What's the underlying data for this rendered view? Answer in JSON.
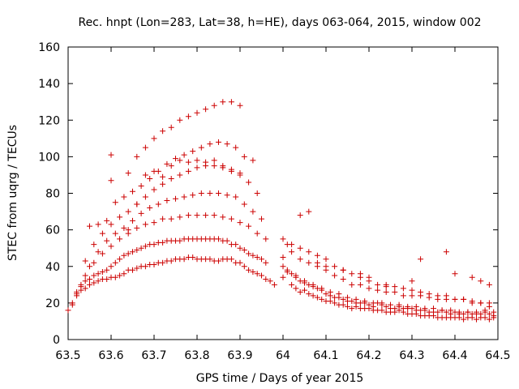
{
  "chart_data": {
    "type": "scatter",
    "title": "Rec. hnpt (Lon=283, Lat=38, h=HE), days 063-064, 2015, window 002",
    "xlabel": "GPS time / Days of year 2015",
    "ylabel": "STEC from uqrg / TECUs",
    "xlim": [
      63.5,
      64.5
    ],
    "ylim": [
      0,
      160
    ],
    "xticks": [
      "63.5",
      "63.6",
      "63.7",
      "63.8",
      "63.9",
      "64",
      "64.1",
      "64.2",
      "64.3",
      "64.4",
      "64.5"
    ],
    "yticks": [
      "0",
      "20",
      "40",
      "60",
      "80",
      "100",
      "120",
      "140",
      "160"
    ],
    "marker": "+",
    "color": "#cc0000",
    "series": [
      {
        "name": "STEC",
        "x": [
          63.5,
          63.51,
          63.52,
          63.53,
          63.54,
          63.55,
          63.56,
          63.57,
          63.58,
          63.59,
          63.6,
          63.61,
          63.62,
          63.63,
          63.64,
          63.65,
          63.66,
          63.67,
          63.68,
          63.69,
          63.7,
          63.71,
          63.72,
          63.73,
          63.74,
          63.75,
          63.76,
          63.77,
          63.78,
          63.79,
          63.8,
          63.81,
          63.82,
          63.83,
          63.84,
          63.85,
          63.86,
          63.87,
          63.88,
          63.89,
          63.9,
          63.91,
          63.92,
          63.93,
          63.94,
          63.95,
          63.96,
          63.97,
          63.98,
          63.51,
          63.52,
          63.53,
          63.54,
          63.55,
          63.56,
          63.57,
          63.58,
          63.59,
          63.6,
          63.61,
          63.62,
          63.63,
          63.64,
          63.65,
          63.66,
          63.67,
          63.68,
          63.69,
          63.7,
          63.71,
          63.72,
          63.73,
          63.74,
          63.75,
          63.76,
          63.77,
          63.78,
          63.79,
          63.8,
          63.81,
          63.82,
          63.83,
          63.84,
          63.85,
          63.86,
          63.87,
          63.88,
          63.89,
          63.9,
          63.91,
          63.92,
          63.93,
          63.94,
          63.95,
          63.96,
          63.52,
          63.54,
          63.56,
          63.58,
          63.6,
          63.62,
          63.64,
          63.66,
          63.68,
          63.7,
          63.72,
          63.74,
          63.76,
          63.78,
          63.8,
          63.82,
          63.84,
          63.86,
          63.88,
          63.9,
          63.92,
          63.94,
          63.96,
          63.53,
          63.55,
          63.57,
          63.59,
          63.61,
          63.63,
          63.65,
          63.67,
          63.69,
          63.71,
          63.73,
          63.75,
          63.77,
          63.79,
          63.81,
          63.83,
          63.85,
          63.87,
          63.89,
          63.91,
          63.93,
          63.95,
          63.54,
          63.56,
          63.58,
          63.6,
          63.62,
          63.64,
          63.66,
          63.68,
          63.7,
          63.72,
          63.74,
          63.76,
          63.78,
          63.8,
          63.82,
          63.84,
          63.86,
          63.88,
          63.9,
          63.92,
          63.94,
          63.55,
          63.57,
          63.59,
          63.61,
          63.63,
          63.65,
          63.67,
          63.69,
          63.71,
          63.73,
          63.75,
          63.77,
          63.79,
          63.81,
          63.83,
          63.85,
          63.87,
          63.89,
          63.91,
          63.93,
          63.6,
          63.64,
          63.66,
          63.68,
          63.7,
          63.72,
          63.74,
          63.76,
          63.78,
          63.8,
          63.82,
          63.84,
          63.86,
          63.88,
          63.9,
          63.6,
          63.64,
          63.66,
          63.68,
          63.7,
          63.72,
          63.74,
          63.76,
          63.78,
          63.8,
          63.82,
          63.84,
          63.86,
          63.88,
          63.9,
          64.0,
          64.01,
          64.02,
          64.03,
          64.04,
          64.05,
          64.06,
          64.07,
          64.08,
          64.09,
          64.1,
          64.11,
          64.12,
          64.13,
          64.14,
          64.15,
          64.16,
          64.17,
          64.18,
          64.19,
          64.2,
          64.21,
          64.22,
          64.23,
          64.24,
          64.25,
          64.26,
          64.27,
          64.28,
          64.29,
          64.3,
          64.31,
          64.32,
          64.33,
          64.34,
          64.35,
          64.36,
          64.37,
          64.38,
          64.39,
          64.4,
          64.41,
          64.42,
          64.43,
          64.44,
          64.45,
          64.46,
          64.47,
          64.48,
          64.49,
          64.0,
          64.01,
          64.02,
          64.03,
          64.04,
          64.05,
          64.06,
          64.07,
          64.08,
          64.09,
          64.1,
          64.11,
          64.12,
          64.13,
          64.14,
          64.15,
          64.16,
          64.17,
          64.18,
          64.19,
          64.2,
          64.21,
          64.22,
          64.23,
          64.24,
          64.25,
          64.26,
          64.27,
          64.28,
          64.29,
          64.3,
          64.31,
          64.32,
          64.33,
          64.34,
          64.35,
          64.36,
          64.37,
          64.38,
          64.39,
          64.4,
          64.41,
          64.42,
          64.43,
          64.44,
          64.45,
          64.46,
          64.47,
          64.48,
          64.49,
          64.0,
          64.02,
          64.04,
          64.06,
          64.08,
          64.1,
          64.12,
          64.14,
          64.16,
          64.18,
          64.2,
          64.22,
          64.24,
          64.26,
          64.28,
          64.3,
          64.32,
          64.34,
          64.36,
          64.38,
          64.4,
          64.42,
          64.44,
          64.46,
          64.48,
          64.0,
          64.02,
          64.04,
          64.06,
          64.08,
          64.1,
          64.12,
          64.14,
          64.16,
          64.18,
          64.2,
          64.22,
          64.24,
          64.26,
          64.28,
          64.3,
          64.32,
          64.34,
          64.36,
          64.38,
          64.4,
          64.42,
          64.44,
          64.46,
          64.48,
          64.01,
          64.03,
          64.05,
          64.07,
          64.09,
          64.11,
          64.13,
          64.15,
          64.17,
          64.19,
          64.21,
          64.23,
          64.25,
          64.27,
          64.29,
          64.31,
          64.33,
          64.35,
          64.37,
          64.39,
          64.41,
          64.43,
          64.45,
          64.47,
          64.49,
          64.04,
          64.06,
          64.08,
          64.1,
          64.14,
          64.18,
          64.2,
          64.24,
          64.3,
          64.32,
          64.38,
          64.4,
          64.44,
          64.46,
          64.48
        ],
        "y": [
          16,
          20,
          24,
          27,
          28,
          30,
          31,
          32,
          33,
          33,
          34,
          34,
          35,
          36,
          38,
          38,
          39,
          40,
          40,
          41,
          41,
          42,
          42,
          43,
          43,
          44,
          44,
          44,
          45,
          45,
          44,
          44,
          44,
          44,
          43,
          43,
          44,
          44,
          44,
          42,
          42,
          40,
          38,
          37,
          36,
          35,
          33,
          32,
          30,
          19,
          25,
          29,
          32,
          33,
          35,
          36,
          37,
          38,
          40,
          42,
          44,
          46,
          47,
          48,
          49,
          50,
          51,
          52,
          52,
          53,
          53,
          54,
          54,
          54,
          54,
          55,
          55,
          55,
          55,
          55,
          55,
          55,
          55,
          55,
          54,
          54,
          52,
          52,
          50,
          49,
          47,
          46,
          45,
          44,
          42,
          26,
          35,
          42,
          47,
          51,
          55,
          58,
          61,
          63,
          64,
          66,
          66,
          67,
          68,
          68,
          68,
          68,
          67,
          66,
          64,
          62,
          58,
          55,
          30,
          40,
          48,
          54,
          58,
          61,
          65,
          69,
          72,
          74,
          76,
          77,
          78,
          79,
          80,
          80,
          80,
          79,
          78,
          74,
          70,
          66,
          43,
          52,
          58,
          63,
          67,
          70,
          74,
          78,
          82,
          85,
          88,
          90,
          92,
          94,
          95,
          95,
          94,
          93,
          90,
          86,
          80,
          62,
          63,
          65,
          75,
          78,
          81,
          84,
          88,
          92,
          96,
          99,
          101,
          103,
          105,
          107,
          108,
          107,
          105,
          100,
          98,
          87,
          91,
          100,
          105,
          110,
          114,
          116,
          120,
          122,
          124,
          126,
          128,
          130,
          130,
          128,
          101,
          60,
          74,
          90,
          92,
          89,
          95,
          98,
          97,
          98,
          97,
          98,
          95,
          92,
          91,
          34,
          52,
          30,
          28,
          26,
          27,
          25,
          24,
          23,
          22,
          21,
          21,
          20,
          19,
          19,
          18,
          17,
          18,
          17,
          17,
          17,
          16,
          16,
          16,
          15,
          15,
          15,
          16,
          15,
          14,
          14,
          14,
          13,
          13,
          13,
          13,
          12,
          12,
          12,
          12,
          12,
          12,
          11,
          12,
          12,
          11,
          12,
          12,
          11,
          12,
          40,
          38,
          36,
          34,
          32,
          31,
          30,
          29,
          28,
          27,
          25,
          24,
          23,
          23,
          22,
          21,
          21,
          20,
          20,
          20,
          19,
          18,
          20,
          19,
          18,
          17,
          17,
          18,
          17,
          17,
          17,
          16,
          16,
          16,
          15,
          15,
          15,
          16,
          15,
          14,
          15,
          14,
          14,
          15,
          14,
          14,
          14,
          15,
          14,
          13,
          45,
          48,
          44,
          42,
          40,
          38,
          35,
          33,
          30,
          30,
          28,
          27,
          26,
          26,
          24,
          24,
          24,
          23,
          22,
          22,
          22,
          22,
          20,
          20,
          18,
          55,
          52,
          50,
          48,
          46,
          44,
          40,
          38,
          36,
          34,
          32,
          30,
          29,
          29,
          28,
          27,
          26,
          25,
          24,
          24,
          22,
          22,
          21,
          20,
          20,
          37,
          35,
          32,
          30,
          28,
          26,
          25,
          23,
          22,
          21,
          20,
          20,
          19,
          19,
          18,
          18,
          17,
          17,
          16,
          16,
          15,
          15,
          15,
          16,
          15,
          68,
          70,
          42,
          40,
          38,
          36,
          34,
          30,
          32,
          44,
          48,
          36,
          34,
          32,
          30
        ]
      }
    ]
  }
}
